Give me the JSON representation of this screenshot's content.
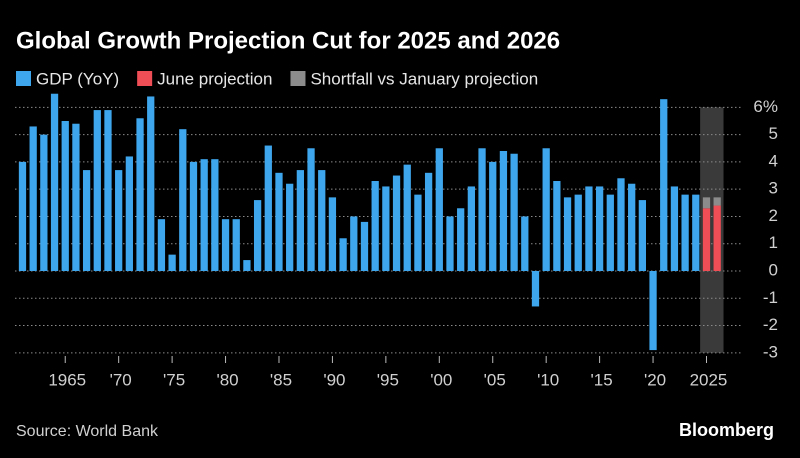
{
  "chart_data": {
    "type": "bar",
    "title": "Global Growth Projection Cut for 2025 and 2026",
    "source": "Source: World Bank",
    "brand": "Bloomberg",
    "x": [
      1961,
      1962,
      1963,
      1964,
      1965,
      1966,
      1967,
      1968,
      1969,
      1970,
      1971,
      1972,
      1973,
      1974,
      1975,
      1976,
      1977,
      1978,
      1979,
      1980,
      1981,
      1982,
      1983,
      1984,
      1985,
      1986,
      1987,
      1988,
      1989,
      1990,
      1991,
      1992,
      1993,
      1994,
      1995,
      1996,
      1997,
      1998,
      1999,
      2000,
      2001,
      2002,
      2003,
      2004,
      2005,
      2006,
      2007,
      2008,
      2009,
      2010,
      2011,
      2012,
      2013,
      2014,
      2015,
      2016,
      2017,
      2018,
      2019,
      2020,
      2021,
      2022,
      2023,
      2024,
      2025,
      2026
    ],
    "series": [
      {
        "name": "GDP (YoY)",
        "color": "#3ea6ec",
        "values": [
          4.0,
          5.3,
          5.0,
          6.5,
          5.5,
          5.4,
          3.7,
          5.9,
          5.9,
          3.7,
          4.2,
          5.6,
          6.4,
          1.9,
          0.6,
          5.2,
          4.0,
          4.1,
          4.1,
          1.9,
          1.9,
          0.4,
          2.6,
          4.6,
          3.6,
          3.2,
          3.7,
          4.5,
          3.7,
          2.7,
          1.2,
          2.0,
          1.8,
          3.3,
          3.1,
          3.5,
          3.9,
          2.8,
          3.6,
          4.5,
          2.0,
          2.3,
          3.1,
          4.5,
          4.0,
          4.4,
          4.3,
          2.0,
          -1.3,
          4.5,
          3.3,
          2.7,
          2.8,
          3.1,
          3.1,
          2.8,
          3.4,
          3.2,
          2.6,
          -2.9,
          6.3,
          3.1,
          2.8,
          2.8,
          null,
          null
        ]
      },
      {
        "name": "June projection",
        "color": "#f04e56",
        "values": [
          null,
          null,
          null,
          null,
          null,
          null,
          null,
          null,
          null,
          null,
          null,
          null,
          null,
          null,
          null,
          null,
          null,
          null,
          null,
          null,
          null,
          null,
          null,
          null,
          null,
          null,
          null,
          null,
          null,
          null,
          null,
          null,
          null,
          null,
          null,
          null,
          null,
          null,
          null,
          null,
          null,
          null,
          null,
          null,
          null,
          null,
          null,
          null,
          null,
          null,
          null,
          null,
          null,
          null,
          null,
          null,
          null,
          null,
          null,
          null,
          null,
          null,
          null,
          null,
          2.3,
          2.4
        ]
      },
      {
        "name": "Shortfall vs January projection",
        "color": "#8c8c8c",
        "stack_on": "June projection",
        "values": [
          null,
          null,
          null,
          null,
          null,
          null,
          null,
          null,
          null,
          null,
          null,
          null,
          null,
          null,
          null,
          null,
          null,
          null,
          null,
          null,
          null,
          null,
          null,
          null,
          null,
          null,
          null,
          null,
          null,
          null,
          null,
          null,
          null,
          null,
          null,
          null,
          null,
          null,
          null,
          null,
          null,
          null,
          null,
          null,
          null,
          null,
          null,
          null,
          null,
          null,
          null,
          null,
          null,
          null,
          null,
          null,
          null,
          null,
          null,
          null,
          null,
          null,
          null,
          null,
          0.4,
          0.3
        ]
      }
    ],
    "xlim": [
      1960.3,
      2027.2
    ],
    "xticks": [
      {
        "value": 1965,
        "label": "1965"
      },
      {
        "value": 1970,
        "label": "'70"
      },
      {
        "value": 1975,
        "label": "'75"
      },
      {
        "value": 1980,
        "label": "'80"
      },
      {
        "value": 1985,
        "label": "'85"
      },
      {
        "value": 1990,
        "label": "'90"
      },
      {
        "value": 1995,
        "label": "'95"
      },
      {
        "value": 2000,
        "label": "'00"
      },
      {
        "value": 2005,
        "label": "'05"
      },
      {
        "value": 2010,
        "label": "'10"
      },
      {
        "value": 2015,
        "label": "'15"
      },
      {
        "value": 2020,
        "label": "'20"
      },
      {
        "value": 2025,
        "label": "2025"
      }
    ],
    "ylim": [
      -3.3,
      6.6
    ],
    "yticks": [
      {
        "value": 6,
        "label": "6%"
      },
      5,
      4,
      3,
      2,
      1,
      0,
      -1,
      -2,
      -3
    ],
    "y_axis_side": "right",
    "grid": true,
    "legend": "top-left"
  }
}
